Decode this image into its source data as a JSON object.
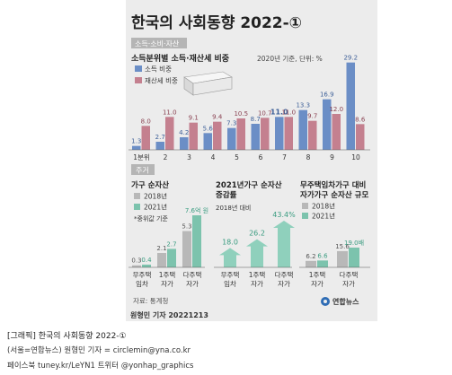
{
  "title": "한국의 사회동향 2022-①",
  "colors": {
    "panel_bg": "#ececec",
    "section_tag_bg": "#b5b5b5",
    "income_blue": "#6b8ec6",
    "asset_tax_pink": "#c4808f",
    "y2018_gray": "#b8b8b8",
    "y2021_green": "#7cc3ad",
    "arrow_green": "#8fd0bc"
  },
  "section1": {
    "tag": "소득·소비·자산",
    "subtitle": "소득분위별 소득·재산세 비중",
    "note": "2020년 기준, 단위: %",
    "legend": [
      "소득 비중",
      "재산세 비중"
    ]
  },
  "section2": {
    "tag": "주거",
    "panel_a_title": "가구 순자산",
    "panel_a_legend": [
      "2018년",
      "2021년"
    ],
    "panel_a_note": "*중위값 기준",
    "panel_b_title_1": "2021년가구 순자산",
    "panel_b_title_2": "증감률",
    "panel_b_note": "2018년 대비",
    "panel_c_title_1": "무주택임차가구 대비",
    "panel_c_title_2": "자가가구 순자산 규모",
    "panel_c_legend": [
      "2018년",
      "2021년"
    ],
    "source": "자료: 통계청",
    "logo_text": "연합뉴스"
  },
  "byline": "원형민 기자  20221213",
  "footer": {
    "line1": "[그래픽] 한국의 사회동향 2022-①",
    "line2": "(서울=연합뉴스) 원형민 기자 = circlemin@yna.co.kr",
    "line3": "페이스북 tuney.kr/LeYN1 트위터 @yonhap_graphics"
  },
  "chart_data": [
    {
      "type": "bar",
      "title": "소득분위별 소득·재산세 비중",
      "categories": [
        "1분위",
        "2",
        "3",
        "4",
        "5",
        "6",
        "7",
        "8",
        "9",
        "10"
      ],
      "series": [
        {
          "name": "소득 비중",
          "values": [
            1.3,
            2.7,
            4.2,
            5.6,
            7.3,
            8.7,
            11.0,
            13.3,
            16.9,
            29.2
          ]
        },
        {
          "name": "재산세 비중",
          "values": [
            8.0,
            11.0,
            9.1,
            9.4,
            10.5,
            10.7,
            11.0,
            9.7,
            12.0,
            8.6
          ]
        }
      ]
    },
    {
      "type": "bar",
      "title": "가구 순자산",
      "categories": [
        "무주택 임차",
        "1주택 자가",
        "다주택 자가"
      ],
      "series": [
        {
          "name": "2018년",
          "values": [
            0.3,
            2.1,
            5.3
          ]
        },
        {
          "name": "2021년",
          "values": [
            0.4,
            2.7,
            7.6
          ]
        }
      ],
      "value_labels_2021": [
        "0.4",
        "2.7",
        "7.6억 원"
      ]
    },
    {
      "type": "bar",
      "title": "2021년가구 순자산 증감률",
      "categories": [
        "무주택 임차",
        "1주택 자가",
        "다주택 자가"
      ],
      "values": [
        18.0,
        26.2,
        43.4
      ],
      "value_labels": [
        "18.0",
        "26.2",
        "43.4%"
      ]
    },
    {
      "type": "bar",
      "title": "무주택임차가구 대비 자가가구 순자산 규모",
      "categories": [
        "1주택 자가",
        "다주택 자가"
      ],
      "series": [
        {
          "name": "2018년",
          "values": [
            6.2,
            15.6
          ]
        },
        {
          "name": "2021년",
          "values": [
            6.6,
            19.0
          ]
        }
      ],
      "value_labels_2021": [
        "6.6",
        "19.0배"
      ]
    }
  ]
}
